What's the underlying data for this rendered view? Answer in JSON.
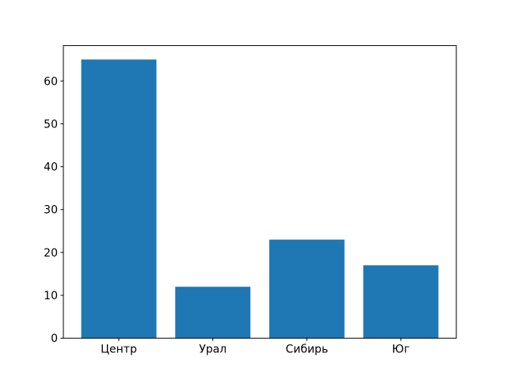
{
  "figure": {
    "background_color": "#ffffff",
    "axes_edge_color": "#000000",
    "tick_label_color": "#000000"
  },
  "chart_data": {
    "type": "bar",
    "categories": [
      "Центр",
      "Урал",
      "Сибирь",
      "Юг"
    ],
    "values": [
      65,
      12,
      23,
      17
    ],
    "series": [
      {
        "name": "",
        "values": [
          65,
          12,
          23,
          17
        ]
      }
    ],
    "title": "",
    "xlabel": "",
    "ylabel": "",
    "ylim": [
      0,
      68.25
    ],
    "yticks": [
      0,
      10,
      20,
      30,
      40,
      50,
      60
    ],
    "bar_color": "#1f77b4",
    "bar_relative_width": 0.8,
    "grid": false,
    "legend": null
  }
}
